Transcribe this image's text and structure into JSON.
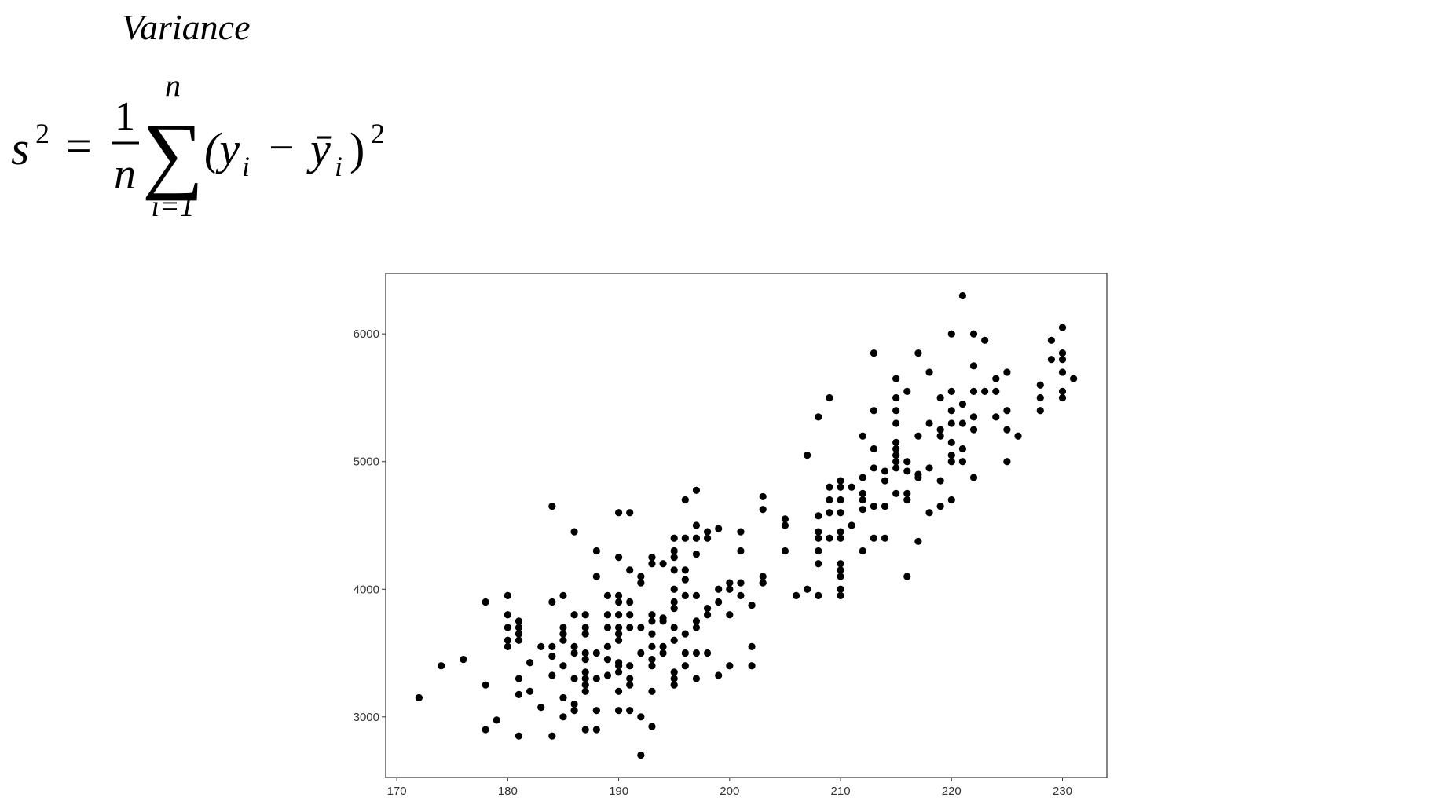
{
  "title": "Variance",
  "formula": {
    "lhs": "s",
    "lhs_exp": "2",
    "equals": "=",
    "numerator": "1",
    "denominator": "n",
    "sum": "∑",
    "upper": "n",
    "lower": "i=1",
    "open": "(y",
    "sub1": "i",
    "minus": "−",
    "ybar": "ȳ",
    "sub2": "i",
    "close": ")",
    "exp": "2"
  },
  "chart_data": {
    "type": "scatter",
    "color": "#000000",
    "xlim": [
      169,
      234
    ],
    "ylim": [
      2525,
      6475
    ],
    "xticks": [
      170,
      180,
      190,
      200,
      210,
      220,
      230
    ],
    "yticks": [
      3000,
      4000,
      5000,
      6000
    ],
    "x": [
      172,
      174,
      176,
      178,
      178,
      178,
      179,
      180,
      180,
      180,
      180,
      180,
      181,
      181,
      181,
      181,
      181,
      181,
      181,
      182,
      182,
      183,
      183,
      184,
      184,
      184,
      184,
      184,
      184,
      185,
      185,
      185,
      185,
      185,
      185,
      185,
      186,
      186,
      186,
      186,
      186,
      186,
      186,
      187,
      187,
      187,
      187,
      187,
      187,
      187,
      187,
      187,
      187,
      188,
      188,
      188,
      188,
      188,
      188,
      189,
      189,
      189,
      189,
      189,
      189,
      190,
      190,
      190,
      190,
      190,
      190,
      190,
      190,
      190,
      190,
      190,
      190,
      190,
      191,
      191,
      191,
      191,
      191,
      191,
      191,
      191,
      191,
      192,
      192,
      192,
      192,
      192,
      192,
      193,
      193,
      193,
      193,
      193,
      193,
      193,
      193,
      193,
      193,
      194,
      194,
      194,
      194,
      194,
      195,
      195,
      195,
      195,
      195,
      195,
      195,
      195,
      195,
      195,
      195,
      195,
      196,
      196,
      196,
      196,
      196,
      196,
      196,
      196,
      197,
      197,
      197,
      197,
      197,
      197,
      197,
      197,
      197,
      198,
      198,
      198,
      198,
      198,
      199,
      199,
      199,
      199,
      200,
      200,
      200,
      200,
      201,
      201,
      201,
      201,
      202,
      202,
      202,
      203,
      203,
      203,
      203,
      205,
      205,
      205,
      206,
      207,
      207,
      208,
      208,
      208,
      208,
      208,
      208,
      208,
      209,
      209,
      209,
      209,
      209,
      210,
      210,
      210,
      210,
      210,
      210,
      210,
      210,
      210,
      210,
      210,
      211,
      211,
      212,
      212,
      212,
      212,
      212,
      212,
      213,
      213,
      213,
      213,
      213,
      213,
      214,
      214,
      214,
      214,
      215,
      215,
      215,
      215,
      215,
      215,
      215,
      215,
      215,
      215,
      216,
      216,
      216,
      216,
      216,
      216,
      217,
      217,
      217,
      217,
      217,
      218,
      218,
      218,
      218,
      219,
      219,
      219,
      219,
      219,
      220,
      220,
      220,
      220,
      220,
      220,
      220,
      220,
      221,
      221,
      221,
      221,
      221,
      222,
      222,
      222,
      222,
      222,
      222,
      223,
      223,
      224,
      224,
      224,
      225,
      225,
      225,
      225,
      226,
      228,
      228,
      228,
      229,
      229,
      230,
      230,
      230,
      230,
      230,
      230,
      231
    ],
    "y": [
      3150,
      3400,
      3450,
      3900,
      3250,
      2900,
      2975,
      3950,
      3800,
      3700,
      3600,
      3550,
      3750,
      3700,
      3650,
      3600,
      3300,
      3175,
      2850,
      3425,
      3200,
      3075,
      3550,
      4650,
      3900,
      3550,
      3475,
      3325,
      2850,
      3950,
      3700,
      3650,
      3600,
      3400,
      3150,
      3000,
      4450,
      3800,
      3550,
      3500,
      3300,
      3100,
      3050,
      3800,
      3700,
      3650,
      3500,
      3450,
      3350,
      3300,
      3250,
      3200,
      2900,
      4300,
      4100,
      3500,
      3300,
      3050,
      2900,
      3950,
      3800,
      3700,
      3550,
      3450,
      3325,
      4600,
      4250,
      3950,
      3900,
      3800,
      3700,
      3650,
      3600,
      3425,
      3400,
      3350,
      3200,
      3050,
      4600,
      4150,
      3900,
      3800,
      3700,
      3400,
      3300,
      3250,
      3050,
      4100,
      4050,
      3700,
      3500,
      3000,
      2700,
      4250,
      4200,
      3800,
      3750,
      3650,
      3550,
      3450,
      3400,
      3200,
      2925,
      4200,
      3775,
      3750,
      3550,
      3500,
      4400,
      4300,
      4250,
      4150,
      4000,
      3900,
      3850,
      3700,
      3600,
      3350,
      3300,
      3250,
      4700,
      4400,
      4150,
      4075,
      3950,
      3650,
      3500,
      3400,
      4775,
      4500,
      4400,
      4275,
      3950,
      3750,
      3700,
      3500,
      3300,
      4450,
      4400,
      3850,
      3800,
      3500,
      4475,
      4000,
      3900,
      3325,
      4050,
      4000,
      3800,
      3400,
      4450,
      4300,
      4050,
      3950,
      3875,
      3550,
      3400,
      4725,
      4625,
      4100,
      4050,
      4550,
      4500,
      4300,
      3950,
      5050,
      4000,
      5350,
      4575,
      4450,
      4400,
      4300,
      4200,
      3950,
      5500,
      4800,
      4700,
      4600,
      4400,
      4850,
      4800,
      4700,
      4600,
      4450,
      4400,
      4200,
      4150,
      4100,
      4000,
      3950,
      4800,
      4500,
      5200,
      4875,
      4750,
      4700,
      4625,
      4300,
      5850,
      5400,
      5100,
      4950,
      4650,
      4400,
      4925,
      4850,
      4650,
      4400,
      5650,
      5500,
      5400,
      5300,
      5150,
      5100,
      5050,
      5000,
      4950,
      4750,
      5550,
      5000,
      4925,
      4750,
      4700,
      4100,
      5850,
      5200,
      4900,
      4875,
      4375,
      5700,
      5300,
      4950,
      4600,
      5500,
      5250,
      5200,
      4850,
      4650,
      6000,
      5550,
      5400,
      5300,
      5150,
      5050,
      5000,
      4700,
      6300,
      5450,
      5300,
      5100,
      5000,
      6000,
      5750,
      5550,
      5350,
      5250,
      4875,
      5950,
      5550,
      5650,
      5550,
      5350,
      5700,
      5400,
      5250,
      5000,
      5200,
      5600,
      5500,
      5400,
      5950,
      5800,
      6050,
      5850,
      5800,
      5700,
      5550,
      5500,
      5650
    ]
  }
}
